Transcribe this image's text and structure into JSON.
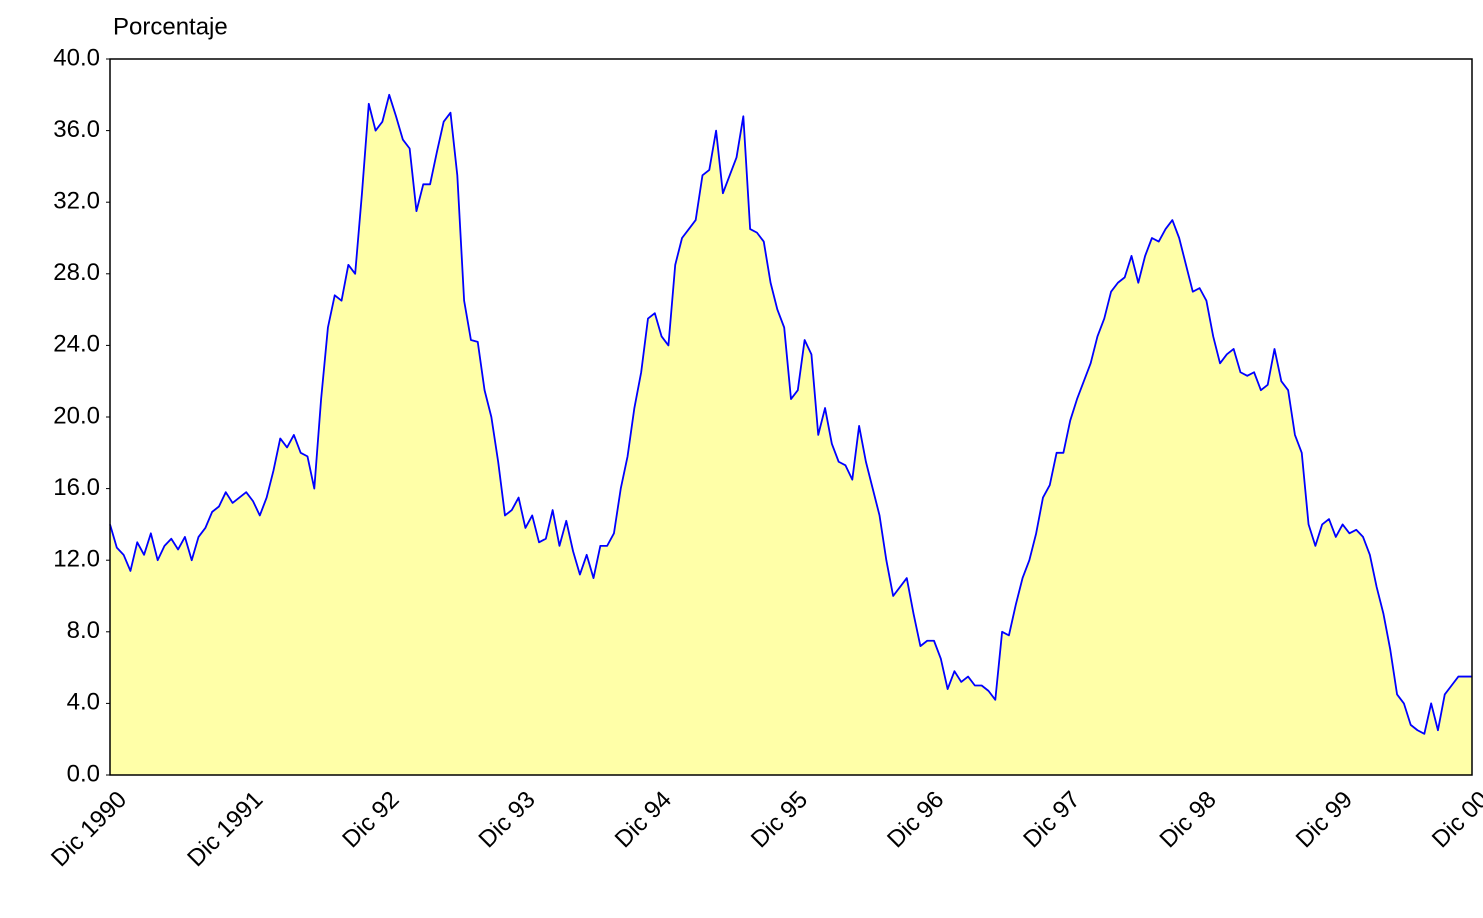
{
  "chart_data": {
    "type": "area",
    "y_axis_label": "Porcentaje",
    "categories": [
      "Dic 1990",
      null,
      null,
      null,
      null,
      null,
      null,
      null,
      null,
      null,
      null,
      null,
      null,
      null,
      null,
      null,
      null,
      null,
      null,
      null,
      "Dic 1991",
      null,
      null,
      null,
      null,
      null,
      null,
      null,
      null,
      null,
      null,
      null,
      null,
      null,
      null,
      null,
      null,
      null,
      null,
      null,
      "Dic 92",
      null,
      null,
      null,
      null,
      null,
      null,
      null,
      null,
      null,
      null,
      null,
      null,
      null,
      null,
      null,
      null,
      null,
      null,
      null,
      "Dic 93",
      null,
      null,
      null,
      null,
      null,
      null,
      null,
      null,
      null,
      null,
      null,
      null,
      null,
      null,
      null,
      null,
      null,
      null,
      null,
      "Dic 94",
      null,
      null,
      null,
      null,
      null,
      null,
      null,
      null,
      null,
      null,
      null,
      null,
      null,
      null,
      null,
      null,
      null,
      null,
      null,
      "Dic 95",
      null,
      null,
      null,
      null,
      null,
      null,
      null,
      null,
      null,
      null,
      null,
      null,
      null,
      null,
      null,
      null,
      null,
      null,
      null,
      "Dic 96",
      null,
      null,
      null,
      null,
      null,
      null,
      null,
      null,
      null,
      null,
      null,
      null,
      null,
      null,
      null,
      null,
      null,
      null,
      null,
      "Dic 97",
      null,
      null,
      null,
      null,
      null,
      null,
      null,
      null,
      null,
      null,
      null,
      null,
      null,
      null,
      null,
      null,
      null,
      null,
      null,
      "Dic 98",
      null,
      null,
      null,
      null,
      null,
      null,
      null,
      null,
      null,
      null,
      null,
      null,
      null,
      null,
      null,
      null,
      null,
      null,
      null,
      "Dic 99",
      null,
      null,
      null,
      null,
      null,
      null,
      null,
      null,
      null,
      null,
      null,
      null,
      null,
      null,
      null,
      null,
      null,
      null,
      null,
      "Dic 00"
    ],
    "values": [
      14.0,
      12.7,
      12.3,
      11.4,
      13.0,
      12.3,
      13.5,
      12.0,
      12.8,
      13.2,
      12.6,
      13.3,
      12.0,
      13.3,
      13.8,
      14.7,
      15.0,
      15.8,
      15.2,
      15.5,
      15.8,
      15.3,
      14.5,
      15.5,
      17.0,
      18.8,
      18.3,
      19.0,
      18.0,
      17.8,
      16.0,
      21.0,
      25.0,
      26.8,
      26.5,
      28.5,
      28.0,
      32.5,
      37.5,
      36.0,
      36.5,
      38.0,
      36.8,
      35.5,
      35.0,
      31.5,
      33.0,
      33.0,
      34.8,
      36.5,
      37.0,
      33.5,
      26.5,
      24.3,
      24.2,
      21.5,
      20.0,
      17.5,
      14.5,
      14.8,
      15.5,
      13.8,
      14.5,
      13.0,
      13.2,
      14.8,
      12.8,
      14.2,
      12.5,
      11.2,
      12.3,
      11.0,
      12.8,
      12.8,
      13.5,
      16.0,
      17.8,
      20.5,
      22.5,
      25.5,
      25.8,
      24.5,
      24.0,
      28.5,
      30.0,
      30.5,
      31.0,
      33.5,
      33.8,
      36.0,
      32.5,
      33.5,
      34.5,
      36.8,
      30.5,
      30.3,
      29.8,
      27.5,
      26.0,
      25.0,
      21.0,
      21.5,
      24.3,
      23.5,
      19.0,
      20.5,
      18.5,
      17.5,
      17.3,
      16.5,
      19.5,
      17.5,
      16.0,
      14.5,
      12.0,
      10.0,
      10.5,
      11.0,
      9.0,
      7.2,
      7.5,
      7.5,
      6.5,
      4.8,
      5.8,
      5.2,
      5.5,
      5.0,
      5.0,
      4.7,
      4.2,
      8.0,
      7.8,
      9.5,
      11.0,
      12.0,
      13.5,
      15.5,
      16.2,
      18.0,
      18.0,
      19.8,
      21.0,
      22.0,
      23.0,
      24.5,
      25.5,
      27.0,
      27.5,
      27.8,
      29.0,
      27.5,
      29.0,
      30.0,
      29.8,
      30.5,
      31.0,
      30.0,
      28.5,
      27.0,
      27.2,
      26.5,
      24.5,
      23.0,
      23.5,
      23.8,
      22.5,
      22.3,
      22.5,
      21.5,
      21.8,
      23.8,
      22.0,
      21.5,
      19.0,
      18.0,
      14.0,
      12.8,
      14.0,
      14.3,
      13.3,
      14.0,
      13.5,
      13.7,
      13.3,
      12.3,
      10.5,
      9.0,
      7.0,
      4.5,
      4.0,
      2.8,
      2.5,
      2.3,
      4.0,
      2.5,
      4.5,
      5.0,
      5.5,
      5.5,
      5.5
    ],
    "color": "#0000ff",
    "fill_color": "#ffffa8",
    "ylim": [
      0,
      40
    ],
    "yticks": [
      {
        "value": 0,
        "label": "0.0"
      },
      {
        "value": 4,
        "label": "4.0"
      },
      {
        "value": 8,
        "label": "8.0"
      },
      {
        "value": 12,
        "label": "12.0"
      },
      {
        "value": 16,
        "label": "16.0"
      },
      {
        "value": 20,
        "label": "20.0"
      },
      {
        "value": 24,
        "label": "24.0"
      },
      {
        "value": 28,
        "label": "28.0"
      },
      {
        "value": 32,
        "label": "32.0"
      },
      {
        "value": 36,
        "label": "36.0"
      },
      {
        "value": 40,
        "label": "40.0"
      }
    ],
    "grid": false
  }
}
